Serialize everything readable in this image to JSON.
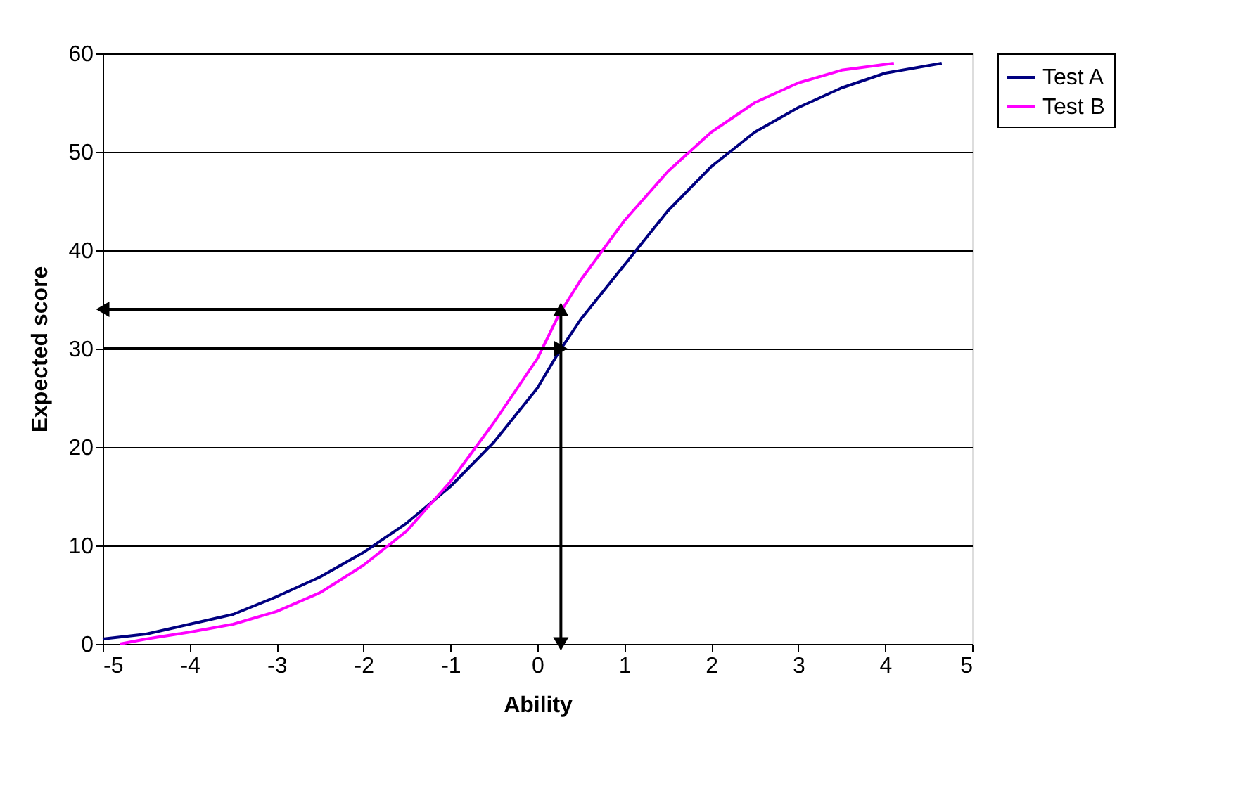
{
  "chart_data": {
    "type": "line",
    "xlabel": "Ability",
    "ylabel": "Expected score",
    "xlim": [
      -5,
      5
    ],
    "xticks": [
      -5,
      -4,
      -3,
      -2,
      -1,
      0,
      1,
      2,
      3,
      4,
      5
    ],
    "ylim": [
      0,
      60
    ],
    "yticks": [
      0,
      10,
      20,
      30,
      40,
      50,
      60
    ],
    "grid": "y",
    "legend": "right",
    "marker": "none",
    "line_style": "solid",
    "series": [
      {
        "name": "Test A",
        "color": "#000080",
        "x": [
          -5,
          -4.5,
          -4,
          -3.5,
          -3,
          -2.5,
          -2,
          -1.5,
          -1,
          -0.5,
          0,
          0.25,
          0.5,
          1,
          1.5,
          2,
          2.5,
          3,
          3.5,
          4,
          4.65
        ],
        "values": [
          0.5,
          1,
          2,
          3,
          4.8,
          6.8,
          9.3,
          12.3,
          16,
          20.5,
          26,
          29.7,
          33,
          38.5,
          44,
          48.5,
          52,
          54.5,
          56.5,
          58,
          59
        ]
      },
      {
        "name": "Test B",
        "color": "#ff00ff",
        "x": [
          -4.8,
          -4.5,
          -4,
          -3.5,
          -3,
          -2.5,
          -2,
          -1.5,
          -1,
          -0.5,
          0,
          0.25,
          0.5,
          1,
          1.5,
          2,
          2.5,
          3,
          3.5,
          4.1
        ],
        "values": [
          0,
          0.5,
          1.2,
          2,
          3.3,
          5.2,
          8,
          11.5,
          16.5,
          22.5,
          29,
          33.5,
          37,
          43,
          48,
          52,
          55,
          57,
          58.3,
          59
        ]
      },
      {
        "type": "line",
        "color": "#000000",
        "marker": "triangle",
        "x": [
          -5,
          0.27
        ],
        "values": [
          30,
          30
        ]
      },
      {
        "type": "line",
        "color": "#000000",
        "marker": "triangle",
        "x": [
          0.27,
          0.27
        ],
        "values": [
          30,
          0
        ]
      },
      {
        "type": "line",
        "color": "#000000",
        "marker": "triangle",
        "x": [
          0.27,
          0.27
        ],
        "values": [
          30,
          34
        ]
      },
      {
        "type": "line",
        "color": "#000000",
        "marker": "triangle",
        "x": [
          0.27,
          -5
        ],
        "values": [
          34,
          34
        ]
      }
    ]
  }
}
